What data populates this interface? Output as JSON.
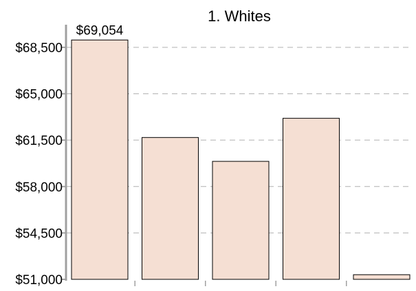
{
  "chart_data": {
    "type": "bar",
    "title": "1. Whites",
    "xlabel": "",
    "ylabel": "",
    "categories": [
      "",
      "",
      "",
      "",
      ""
    ],
    "values": [
      69054,
      61700,
      59900,
      63150,
      51350
    ],
    "data_labels": [
      "$69,054",
      "",
      "",
      "",
      ""
    ],
    "ylim": [
      51000,
      70000
    ],
    "yticks": [
      51000,
      54500,
      58000,
      61500,
      65000,
      68500
    ],
    "ytick_labels": [
      "$51,000",
      "$54,500",
      "$58,000",
      "$61,500",
      "$65,000",
      "$68,500"
    ],
    "grid": true,
    "legend": "none",
    "colors": {
      "bar_fill": "#f5dfd3",
      "bar_stroke": "#000000",
      "axis": "#a0a0a0",
      "grid": "#b0b0b0"
    }
  }
}
